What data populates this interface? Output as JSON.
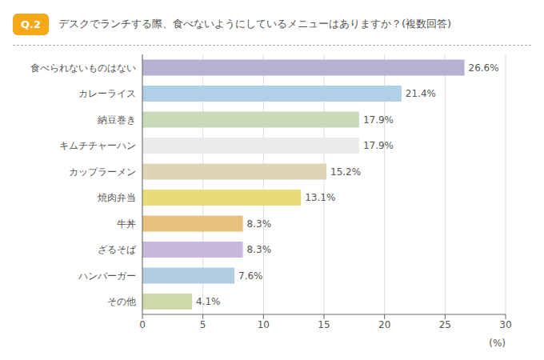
{
  "chart_data": {
    "type": "bar",
    "orientation": "horizontal",
    "title": "デスクでランチする際、食べないようにしているメニューはありますか？(複数回答)",
    "annotations": [
      "Q.2"
    ],
    "categories": [
      "食べられないものはない",
      "カレーライス",
      "納豆巻き",
      "キムチチャーハン",
      "カップラーメン",
      "焼肉弁当",
      "牛丼",
      "ざるそば",
      "ハンバーガー",
      "その他"
    ],
    "values": [
      26.6,
      21.4,
      17.9,
      17.9,
      15.2,
      13.1,
      8.3,
      8.3,
      7.6,
      4.1
    ],
    "value_labels": [
      "26.6%",
      "21.4%",
      "17.9%",
      "17.9%",
      "15.2%",
      "13.1%",
      "8.3%",
      "8.3%",
      "7.6%",
      "4.1%"
    ],
    "data_labels": true,
    "colors": [
      "#b8b0d0",
      "#b0d0e8",
      "#c8dab8",
      "#ebebeb",
      "#ddd5b5",
      "#e8dc78",
      "#e8c080",
      "#c8b8dc",
      "#b0cce0",
      "#ccdaaa"
    ],
    "xlabel": "(%)",
    "xlim": [
      0,
      30
    ],
    "xticks": [
      0,
      5,
      10,
      15,
      20,
      25,
      30
    ],
    "grid": true
  }
}
